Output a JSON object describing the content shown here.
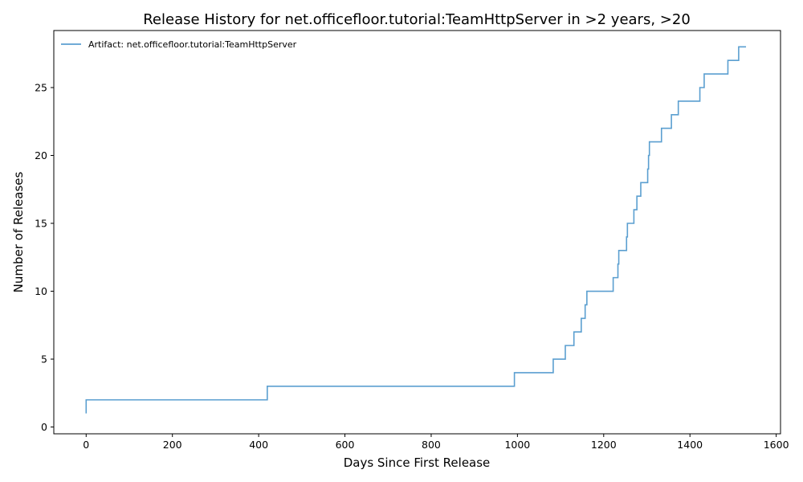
{
  "chart_data": {
    "type": "line",
    "drawstyle": "steps-post",
    "title": "Release History for net.officefloor.tutorial:TeamHttpServer in >2 years, >20",
    "xlabel": "Days Since First Release",
    "ylabel": "Number of Releases",
    "xlim": [
      -75,
      1610
    ],
    "ylim": [
      -0.5,
      29.2
    ],
    "xticks": [
      0,
      200,
      400,
      600,
      800,
      1000,
      1200,
      1400,
      1600
    ],
    "yticks": [
      0,
      5,
      10,
      15,
      20,
      25
    ],
    "legend_position": "top-left",
    "colors": {
      "series": "#5b9fd0",
      "axes": "#000000",
      "background": "#ffffff"
    },
    "series": [
      {
        "name": "Artifact: net.officefloor.tutorial:TeamHttpServer",
        "x": [
          0,
          0,
          420,
          993,
          1083,
          1111,
          1131,
          1148,
          1157,
          1161,
          1222,
          1233,
          1235,
          1253,
          1255,
          1270,
          1277,
          1286,
          1302,
          1304,
          1305,
          1306,
          1334,
          1357,
          1373,
          1423,
          1433,
          1488,
          1513,
          1530
        ],
        "y": [
          1,
          2,
          3,
          4,
          5,
          6,
          7,
          8,
          9,
          10,
          11,
          12,
          13,
          14,
          15,
          16,
          17,
          18,
          19,
          20,
          20,
          21,
          22,
          23,
          24,
          25,
          26,
          27,
          28,
          28
        ]
      }
    ]
  }
}
